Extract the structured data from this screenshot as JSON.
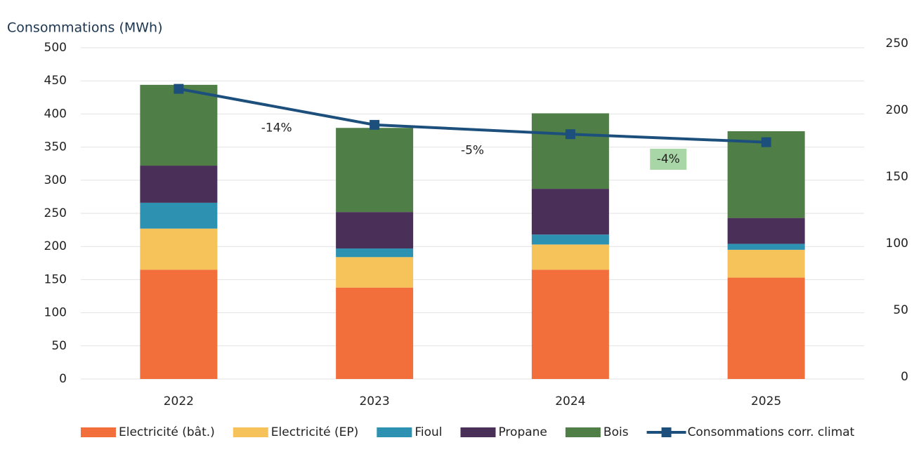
{
  "chart_data": {
    "type": "stacked-bar-line",
    "title": "Consommations (MWh)",
    "categories": [
      "2022",
      "2023",
      "2024",
      "2025"
    ],
    "series": [
      {
        "name": "Electricité (bât.)",
        "color": "#f26f3c",
        "values": [
          165,
          138,
          165,
          153
        ]
      },
      {
        "name": "Electricité (EP)",
        "color": "#f6c25a",
        "values": [
          62,
          46,
          38,
          42
        ]
      },
      {
        "name": "Fioul",
        "color": "#2d91b2",
        "values": [
          39,
          13,
          15,
          9
        ]
      },
      {
        "name": "Propane",
        "color": "#4a2f58",
        "values": [
          56,
          55,
          69,
          39
        ]
      },
      {
        "name": "Bois",
        "color": "#4f7f47",
        "values": [
          122,
          127,
          114,
          131
        ]
      },
      {
        "name": "Consommations corr. climat",
        "color": "#1d4f7c",
        "axis": "y2",
        "values": [
          216,
          189,
          182,
          176
        ]
      }
    ],
    "ylim": [
      0,
      500
    ],
    "yticks": [
      0,
      50,
      100,
      150,
      200,
      250,
      300,
      350,
      400,
      450,
      500
    ],
    "y2lim": [
      0,
      250
    ],
    "y2ticks": [
      0,
      50,
      100,
      150,
      200,
      250
    ],
    "grid": true,
    "annotations": [
      {
        "text": "-14%"
      },
      {
        "text": "-5%"
      },
      {
        "text": "-4%",
        "highlight_color": "#a8d6a6"
      }
    ]
  }
}
